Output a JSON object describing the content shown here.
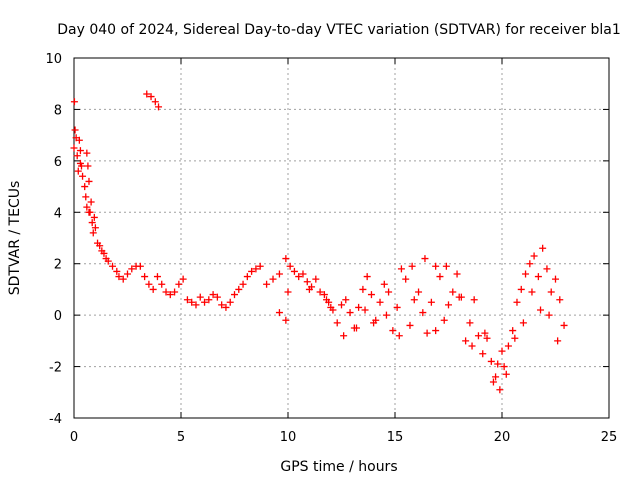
{
  "chart_data": {
    "type": "scatter",
    "title": "Day 040 of 2024, Sidereal Day-to-day VTEC variation (SDTVAR) for receiver bla1",
    "xlabel": "GPS time / hours",
    "ylabel": "SDTVAR / TECUs",
    "xlim": [
      0,
      25
    ],
    "ylim": [
      -4,
      10
    ],
    "xticks": [
      "0",
      "5",
      "10",
      "15",
      "20",
      "25"
    ],
    "yticks": [
      "-4",
      "-2",
      "0",
      "2",
      "4",
      "6",
      "8",
      "10"
    ],
    "grid": true,
    "marker": "plus",
    "color": "#ff0000",
    "series": [
      {
        "name": "SDTVAR",
        "x": [
          0.0,
          0.05,
          0.1,
          0.15,
          0.2,
          0.25,
          0.3,
          0.35,
          0.4,
          0.5,
          0.55,
          0.6,
          0.65,
          0.7,
          0.75,
          0.8,
          0.85,
          0.9,
          0.95,
          1.0,
          1.1,
          1.2,
          1.3,
          1.4,
          1.5,
          1.6,
          1.8,
          2.0,
          2.1,
          2.3,
          2.5,
          2.7,
          2.9,
          3.1,
          3.3,
          3.5,
          3.7,
          3.9,
          4.1,
          4.3,
          4.5,
          4.7,
          4.9,
          5.1,
          5.3,
          5.5,
          5.7,
          5.9,
          6.1,
          6.3,
          6.5,
          6.7,
          6.9,
          7.1,
          7.3,
          7.5,
          7.7,
          7.9,
          8.1,
          8.3,
          8.5,
          8.7,
          9.0,
          9.3,
          9.6,
          9.9,
          10.1,
          10.3,
          10.5,
          10.7,
          10.9,
          11.1,
          11.3,
          11.5,
          11.7,
          11.9,
          12.1,
          12.3,
          12.5,
          12.7,
          12.9,
          13.1,
          13.3,
          13.5,
          13.7,
          13.9,
          14.1,
          14.3,
          14.5,
          14.7,
          14.9,
          15.1,
          15.3,
          15.5,
          15.7,
          15.9,
          16.1,
          16.3,
          16.5,
          16.7,
          16.9,
          17.1,
          17.3,
          17.5,
          17.7,
          17.9,
          18.1,
          18.3,
          18.5,
          18.7,
          18.9,
          19.1,
          19.3,
          19.5,
          19.7,
          19.9,
          20.1,
          20.3,
          20.5,
          20.7,
          20.9,
          21.1,
          21.3,
          21.5,
          21.7,
          21.9,
          22.1,
          22.3,
          22.5,
          22.7,
          22.9,
          3.4,
          3.6,
          3.8,
          3.95,
          0.02,
          0.3,
          0.6,
          0.7,
          9.6,
          9.9,
          10.0,
          11.0,
          11.8,
          12.0,
          12.6,
          13.2,
          13.6,
          14.0,
          14.6,
          15.2,
          15.8,
          16.4,
          16.9,
          17.4,
          18.0,
          18.6,
          19.2,
          19.6,
          19.8,
          20.0,
          20.2,
          20.6,
          21.0,
          21.4,
          21.8,
          22.2,
          22.6
        ],
        "y": [
          6.5,
          7.2,
          6.9,
          6.2,
          5.6,
          6.8,
          6.4,
          5.8,
          5.4,
          5.0,
          4.6,
          4.2,
          5.8,
          5.2,
          4.0,
          4.4,
          3.6,
          3.2,
          3.8,
          3.4,
          2.8,
          2.7,
          2.5,
          2.4,
          2.2,
          2.1,
          1.9,
          1.7,
          1.5,
          1.4,
          1.6,
          1.8,
          1.9,
          1.9,
          1.5,
          1.2,
          1.0,
          1.5,
          1.2,
          0.9,
          0.8,
          0.9,
          1.2,
          1.4,
          0.6,
          0.5,
          0.4,
          0.7,
          0.5,
          0.6,
          0.8,
          0.7,
          0.4,
          0.3,
          0.5,
          0.8,
          1.0,
          1.2,
          1.5,
          1.7,
          1.8,
          1.9,
          1.2,
          1.4,
          1.6,
          2.2,
          1.9,
          1.7,
          1.5,
          1.6,
          1.3,
          1.1,
          1.4,
          0.9,
          0.8,
          0.5,
          0.2,
          -0.3,
          0.4,
          0.6,
          0.1,
          -0.5,
          0.3,
          1.0,
          1.5,
          0.8,
          -0.2,
          0.5,
          1.2,
          0.9,
          -0.6,
          0.3,
          1.8,
          1.4,
          -0.4,
          0.6,
          0.9,
          0.1,
          -0.7,
          0.5,
          1.9,
          1.5,
          -0.2,
          0.4,
          0.9,
          1.6,
          0.7,
          -1.0,
          -0.3,
          0.6,
          -0.8,
          -1.5,
          -0.9,
          -1.8,
          -2.4,
          -2.9,
          -2.0,
          -1.2,
          -0.6,
          0.5,
          1.0,
          1.6,
          2.0,
          2.3,
          1.5,
          2.6,
          1.8,
          0.9,
          1.4,
          0.6,
          -0.4,
          8.6,
          8.5,
          8.3,
          8.1,
          8.3,
          5.9,
          6.3,
          4.0,
          0.1,
          -0.2,
          0.9,
          1.0,
          0.6,
          0.3,
          -0.8,
          -0.5,
          0.2,
          -0.3,
          0.0,
          -0.8,
          1.9,
          2.2,
          -0.6,
          1.9,
          0.7,
          -1.2,
          -0.7,
          -2.6,
          -1.9,
          -1.4,
          -2.3,
          -0.9,
          -0.3,
          0.9,
          0.2,
          0.0,
          -1.0
        ]
      }
    ]
  }
}
